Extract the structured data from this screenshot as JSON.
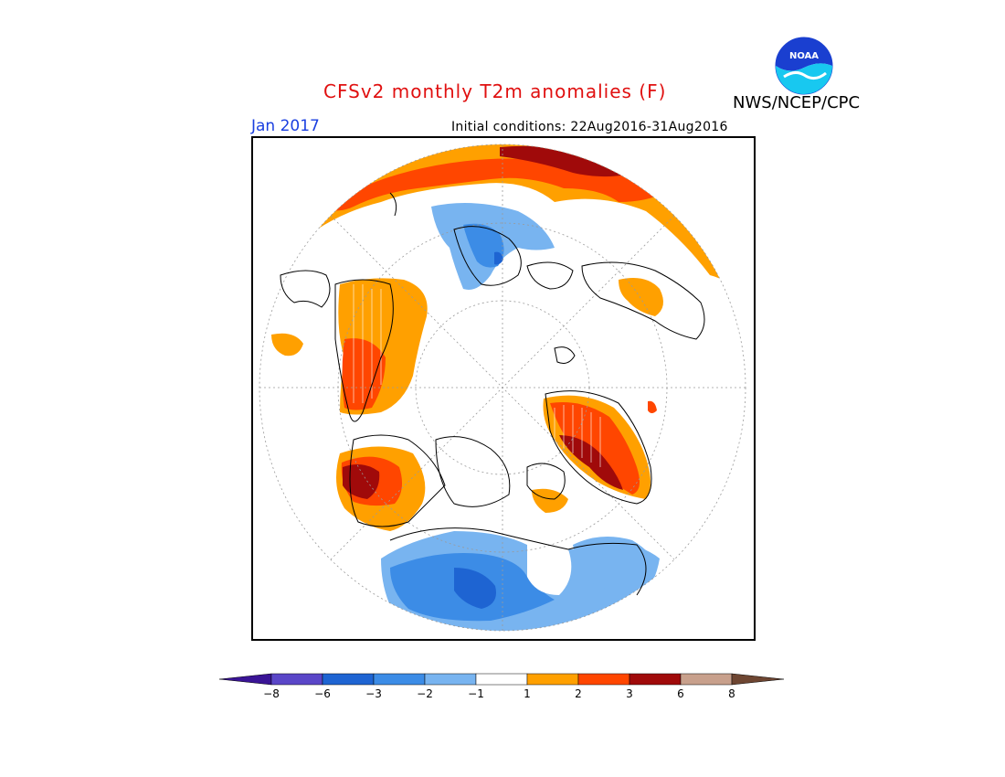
{
  "header": {
    "title": "CFSv2 monthly T2m anomalies (F)",
    "agency": "NWS/NCEP/CPC",
    "month": "Jan 2017",
    "initial_conditions": "Initial conditions: 22Aug2016-31Aug2016",
    "logo_text": "NOAA"
  },
  "map": {
    "projection": "north-polar-stereographic",
    "variable": "T2m anomaly",
    "units": "F"
  },
  "colors": {
    "title": "#e01010",
    "month": "#1a3fe0",
    "logo_blue": "#1a3fd0",
    "logo_cyan": "#18c8f0"
  },
  "colorbar": {
    "ticks": [
      "−8",
      "−6",
      "−3",
      "−2",
      "−1",
      "1",
      "2",
      "3",
      "6",
      "8"
    ],
    "bins": [
      {
        "range": "< -8",
        "color": "#3a1496"
      },
      {
        "range": "-8 to -6",
        "color": "#5a46c8"
      },
      {
        "range": "-6 to -3",
        "color": "#1e64d2"
      },
      {
        "range": "-3 to -2",
        "color": "#3c8ce6"
      },
      {
        "range": "-2 to -1",
        "color": "#78b4f0"
      },
      {
        "range": "-1 to 1",
        "color": "#ffffff"
      },
      {
        "range": "1 to 2",
        "color": "#ffa000"
      },
      {
        "range": "2 to 3",
        "color": "#ff4600"
      },
      {
        "range": "3 to 6",
        "color": "#a00a0a"
      },
      {
        "range": "6 to 8",
        "color": "#c8a08c"
      },
      {
        "range": "> 8",
        "color": "#6e4632"
      }
    ]
  }
}
